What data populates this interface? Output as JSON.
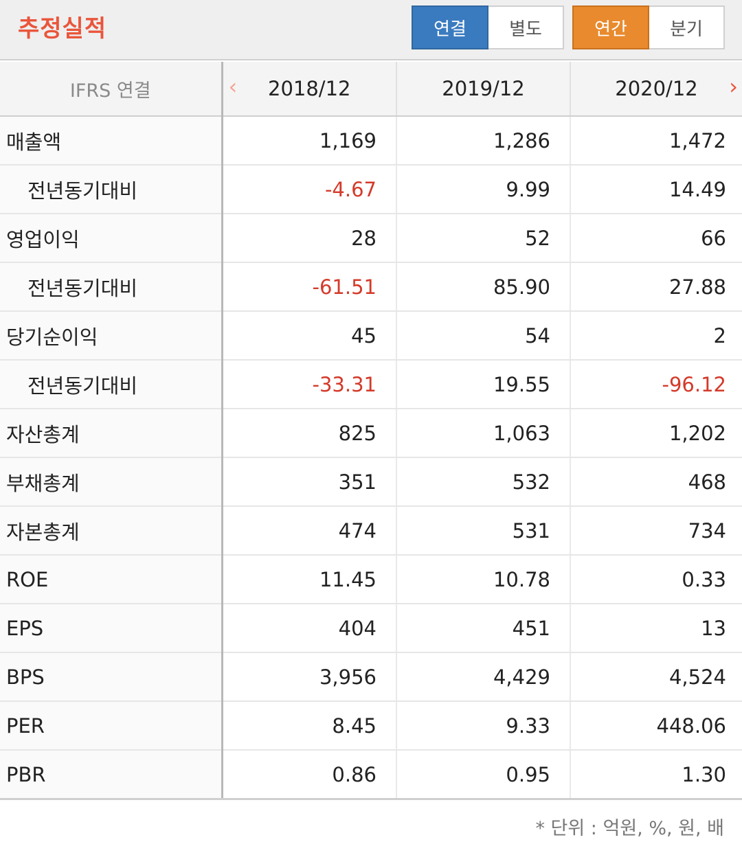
{
  "header": {
    "title": "추정실적",
    "scope_options": [
      "연결",
      "별도"
    ],
    "scope_selected": "연결",
    "period_options": [
      "연간",
      "분기"
    ],
    "period_selected": "연간"
  },
  "colors": {
    "title": "#e9553b",
    "scope_active": "#3a7bc0",
    "period_active": "#e88a2d",
    "negative_value": "#d43a2a"
  },
  "table": {
    "corner_label": "IFRS 연결",
    "prev_icon": "chevron-left-icon",
    "next_icon": "chevron-right-icon",
    "columns": [
      "2018/12",
      "2019/12",
      "2020/12"
    ],
    "rows": [
      {
        "label": "매출액",
        "sub": false,
        "values": [
          "1,169",
          "1,286",
          "1,472"
        ]
      },
      {
        "label": "전년동기대비",
        "sub": true,
        "values": [
          "-4.67",
          "9.99",
          "14.49"
        ]
      },
      {
        "label": "영업이익",
        "sub": false,
        "values": [
          "28",
          "52",
          "66"
        ]
      },
      {
        "label": "전년동기대비",
        "sub": true,
        "values": [
          "-61.51",
          "85.90",
          "27.88"
        ]
      },
      {
        "label": "당기순이익",
        "sub": false,
        "values": [
          "45",
          "54",
          "2"
        ]
      },
      {
        "label": "전년동기대비",
        "sub": true,
        "values": [
          "-33.31",
          "19.55",
          "-96.12"
        ]
      },
      {
        "label": "자산총계",
        "sub": false,
        "values": [
          "825",
          "1,063",
          "1,202"
        ]
      },
      {
        "label": "부채총계",
        "sub": false,
        "values": [
          "351",
          "532",
          "468"
        ]
      },
      {
        "label": "자본총계",
        "sub": false,
        "values": [
          "474",
          "531",
          "734"
        ]
      },
      {
        "label": "ROE",
        "sub": false,
        "values": [
          "11.45",
          "10.78",
          "0.33"
        ]
      },
      {
        "label": "EPS",
        "sub": false,
        "values": [
          "404",
          "451",
          "13"
        ]
      },
      {
        "label": "BPS",
        "sub": false,
        "values": [
          "3,956",
          "4,429",
          "4,524"
        ]
      },
      {
        "label": "PER",
        "sub": false,
        "values": [
          "8.45",
          "9.33",
          "448.06"
        ]
      },
      {
        "label": "PBR",
        "sub": false,
        "values": [
          "0.86",
          "0.95",
          "1.30"
        ]
      }
    ]
  },
  "footer": {
    "unit_note": "* 단위 : 억원, %, 원, 배"
  }
}
